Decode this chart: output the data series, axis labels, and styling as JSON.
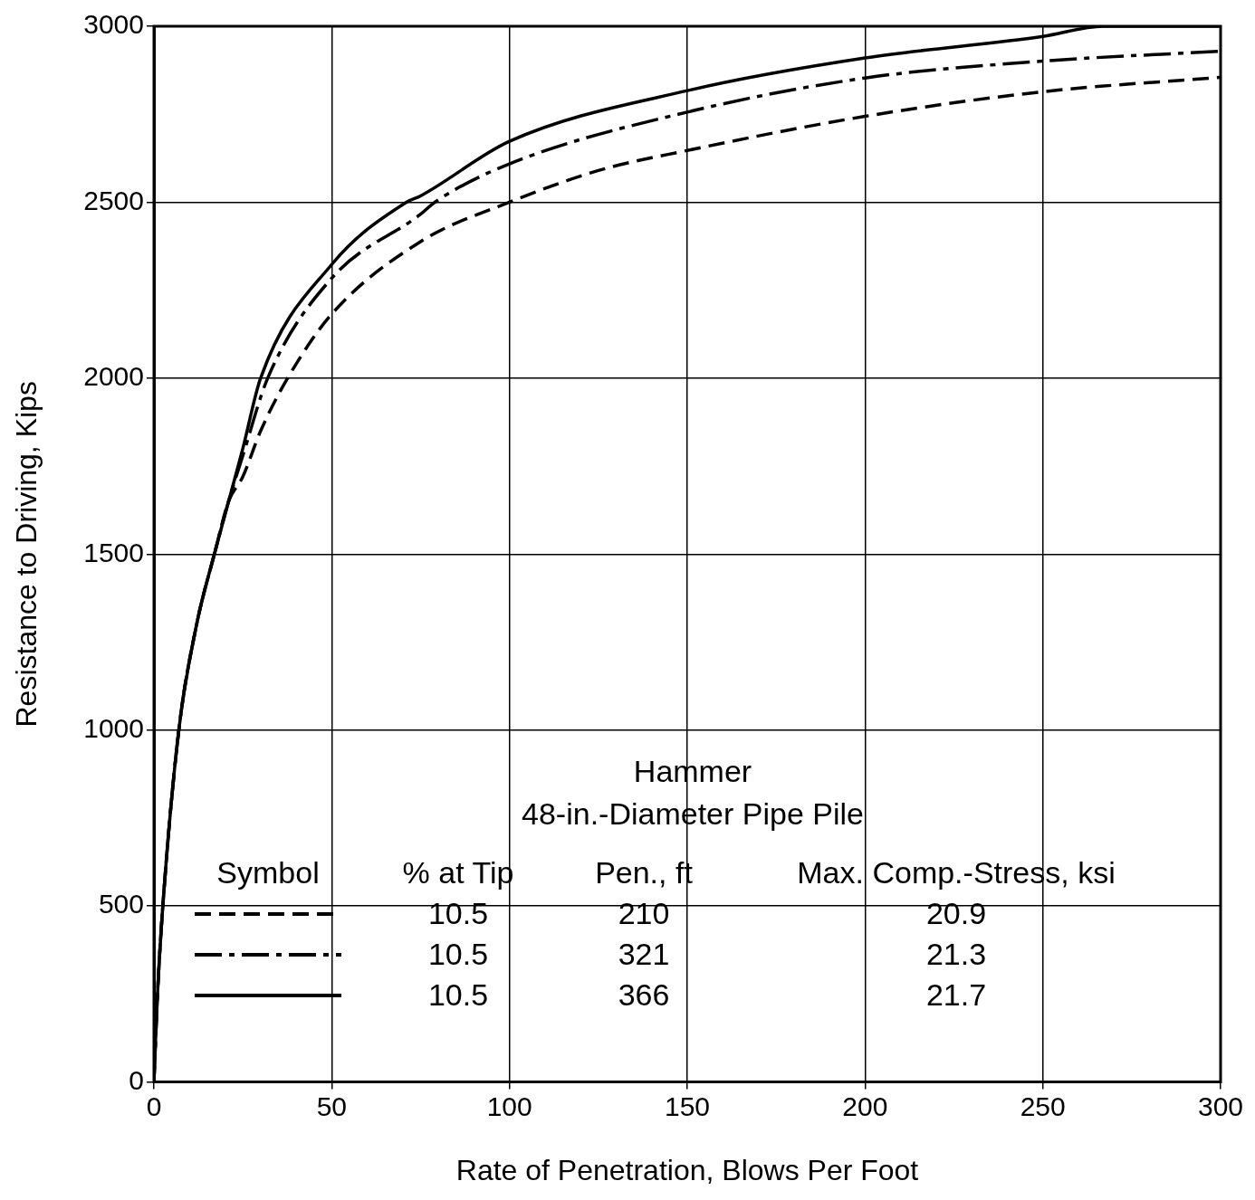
{
  "chart_data": {
    "type": "line",
    "title": "Hammer",
    "subtitle": "48-in.-Diameter Pipe Pile",
    "xlabel": "Rate of Penetration, Blows Per Foot",
    "ylabel": "Resistance to Driving, Kips",
    "xlim": [
      0,
      300
    ],
    "xticks": [
      0,
      50,
      100,
      150,
      200,
      250,
      300
    ],
    "ylim": [
      0,
      3000
    ],
    "yticks": [
      0,
      500,
      1000,
      1500,
      2000,
      2500,
      3000
    ],
    "grid": true,
    "legend": false,
    "marker": "none",
    "annotations": [
      "Symbol",
      "% at Tip",
      "Pen., ft",
      "Max. Comp.-Stress, ksi",
      "10.5",
      "210",
      "20.9",
      "10.5",
      "321",
      "21.3",
      "10.5",
      "366",
      "21.7"
    ],
    "series": [
      {
        "color": "#000000",
        "line_style": "dashed",
        "x": [
          0,
          1,
          2.5,
          7,
          12,
          17,
          21,
          25,
          30,
          37.6,
          50,
          75,
          100,
          125,
          150,
          200,
          250,
          300
        ],
        "values": [
          0,
          250,
          500,
          1000,
          1300,
          1500,
          1650,
          1720,
          1850,
          2000,
          2182,
          2388,
          2500,
          2590,
          2647,
          2744,
          2814,
          2855
        ]
      },
      {
        "color": "#000000",
        "line_style": "dash-dot",
        "x": [
          0,
          1,
          2.5,
          7,
          12,
          17,
          21,
          25,
          32,
          50,
          75,
          79,
          100,
          150,
          200,
          250,
          300
        ],
        "values": [
          0,
          250,
          500,
          1000,
          1300,
          1500,
          1650,
          1780,
          2000,
          2284,
          2466,
          2500,
          2609,
          2756,
          2853,
          2901,
          2929
        ]
      },
      {
        "color": "#000000",
        "line_style": "solid",
        "x": [
          0,
          1,
          2.5,
          7,
          12,
          17,
          21,
          25,
          30,
          50,
          71,
          75,
          100,
          150,
          200,
          250,
          267,
          300
        ],
        "values": [
          0,
          250,
          500,
          1000,
          1300,
          1500,
          1650,
          1800,
          2000,
          2323,
          2500,
          2518,
          2673,
          2817,
          2910,
          2971,
          3000,
          3000
        ]
      }
    ]
  }
}
